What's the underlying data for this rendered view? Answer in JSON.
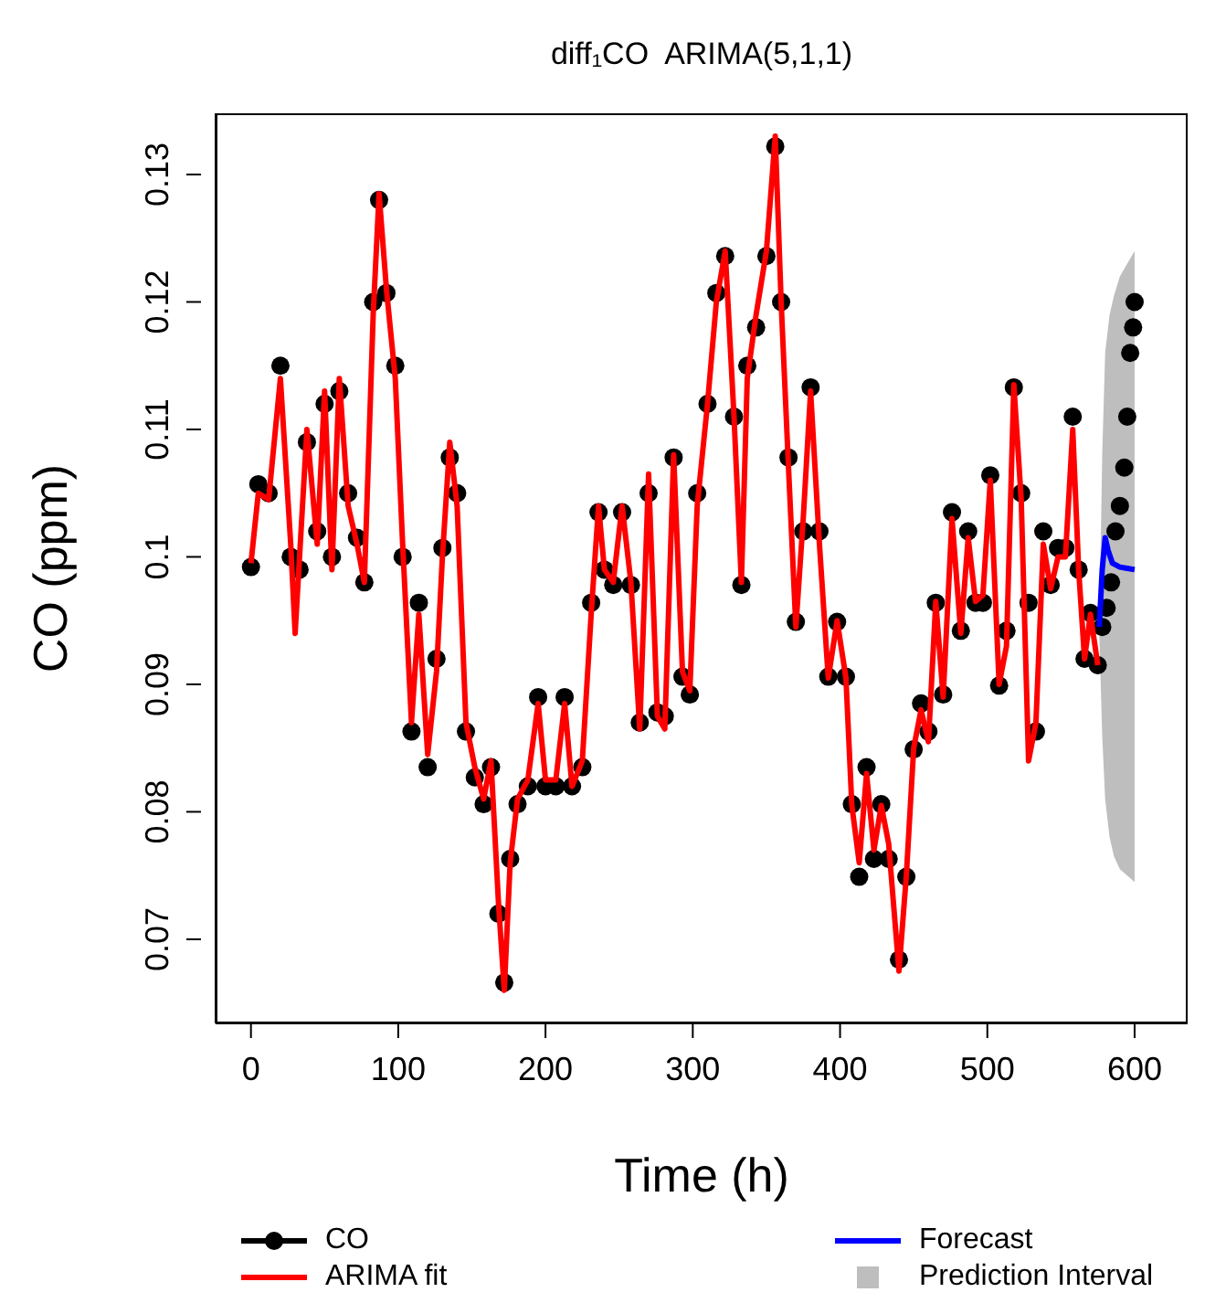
{
  "chart_data": {
    "type": "line",
    "title": "diff₁CO  ARIMA(5,1,1)",
    "xlabel": "Time (h)",
    "ylabel": "CO (ppm)",
    "xlim": [
      -24,
      636
    ],
    "xticks": [
      0,
      100,
      200,
      300,
      400,
      500,
      600
    ],
    "ylim": [
      0.0634,
      0.1348
    ],
    "yticks": [
      0.07,
      0.08,
      0.09,
      0.1,
      0.11,
      0.12,
      0.13
    ],
    "legend": "bottom",
    "series": [
      {
        "name": "Prediction Interval",
        "type": "area",
        "color": "#bebebe",
        "x": [
          576,
          578,
          580,
          583,
          586,
          590,
          595,
          600
        ],
        "values": [
          null,
          null,
          null,
          null,
          null,
          null,
          null,
          null
        ],
        "lower": [
          0.094,
          0.086,
          0.081,
          0.078,
          0.0765,
          0.0755,
          0.075,
          0.0745
        ],
        "upper": [
          0.094,
          0.108,
          0.116,
          0.119,
          0.1205,
          0.122,
          0.123,
          0.124
        ]
      },
      {
        "name": "CO",
        "type": "scatter",
        "color": "#000000",
        "marker": "circle",
        "x": [
          0,
          5,
          12,
          20,
          27,
          33,
          38,
          45,
          50,
          55,
          60,
          66,
          72,
          77,
          83,
          87,
          92,
          98,
          103,
          109,
          114,
          120,
          126,
          130,
          135,
          140,
          146,
          152,
          158,
          163,
          168,
          172,
          176,
          181,
          188,
          195,
          200,
          207,
          213,
          218,
          225,
          231,
          236,
          240,
          246,
          252,
          258,
          264,
          270,
          276,
          281,
          287,
          293,
          298,
          303,
          310,
          316,
          322,
          328,
          333,
          337,
          343,
          350,
          356,
          360,
          365,
          370,
          375,
          380,
          386,
          392,
          398,
          404,
          408,
          413,
          418,
          423,
          428,
          433,
          440,
          445,
          450,
          455,
          460,
          465,
          470,
          476,
          482,
          487,
          492,
          497,
          502,
          508,
          513,
          518,
          523,
          528,
          533,
          538,
          543,
          548,
          553,
          558,
          562,
          566,
          570,
          575,
          578,
          581,
          584,
          587,
          590,
          593,
          595,
          597,
          599,
          600
        ],
        "values": [
          0.0992,
          0.1057,
          0.105,
          0.115,
          0.1,
          0.099,
          0.109,
          0.102,
          0.112,
          0.1,
          0.113,
          0.105,
          0.1015,
          0.098,
          0.12,
          0.128,
          0.1207,
          0.115,
          0.1,
          0.0863,
          0.0964,
          0.0835,
          0.092,
          0.1007,
          0.1078,
          0.105,
          0.0863,
          0.0827,
          0.0806,
          0.0835,
          0.072,
          0.0666,
          0.0763,
          0.0806,
          0.082,
          0.089,
          0.082,
          0.082,
          0.089,
          0.082,
          0.0835,
          0.0964,
          0.1035,
          0.099,
          0.0978,
          0.1035,
          0.0978,
          0.087,
          0.105,
          0.0878,
          0.0875,
          0.1078,
          0.0906,
          0.0892,
          0.105,
          0.112,
          0.1207,
          0.1236,
          0.111,
          0.0978,
          0.115,
          0.118,
          0.1236,
          0.1322,
          0.12,
          0.1078,
          0.0949,
          0.102,
          0.1133,
          0.102,
          0.0906,
          0.0949,
          0.0906,
          0.0806,
          0.0749,
          0.0835,
          0.0763,
          0.0806,
          0.0763,
          0.0684,
          0.0749,
          0.0849,
          0.0885,
          0.0863,
          0.0964,
          0.0892,
          0.1035,
          0.0942,
          0.102,
          0.0964,
          0.0964,
          0.1064,
          0.0899,
          0.0942,
          0.1133,
          0.105,
          0.0964,
          0.0863,
          0.102,
          0.0978,
          0.1007,
          0.1007,
          0.111,
          0.099,
          0.092,
          0.0956,
          0.0915,
          0.0945,
          0.096,
          0.098,
          0.102,
          0.104,
          0.107,
          0.111,
          0.116,
          0.118,
          0.12
        ]
      },
      {
        "name": "ARIMA fit",
        "color": "#ff0000",
        "marker": "none",
        "x": [
          0,
          5,
          12,
          20,
          27,
          30,
          38,
          45,
          50,
          55,
          60,
          66,
          72,
          77,
          83,
          87,
          92,
          98,
          103,
          109,
          114,
          120,
          126,
          130,
          135,
          140,
          146,
          152,
          158,
          163,
          168,
          172,
          176,
          181,
          188,
          195,
          200,
          207,
          213,
          218,
          225,
          231,
          236,
          240,
          246,
          252,
          258,
          264,
          270,
          276,
          281,
          287,
          293,
          298,
          303,
          310,
          316,
          322,
          328,
          333,
          337,
          343,
          350,
          356,
          360,
          365,
          370,
          375,
          380,
          386,
          392,
          398,
          404,
          408,
          413,
          418,
          423,
          428,
          433,
          440,
          445,
          450,
          455,
          460,
          465,
          470,
          476,
          482,
          487,
          492,
          497,
          502,
          508,
          513,
          518,
          523,
          528,
          533,
          538,
          543,
          548,
          553,
          558,
          562,
          566,
          570,
          575
        ],
        "values": [
          0.0995,
          0.105,
          0.1045,
          0.114,
          0.101,
          0.094,
          0.11,
          0.101,
          0.113,
          0.099,
          0.114,
          0.104,
          0.101,
          0.098,
          0.119,
          0.1285,
          0.121,
          0.114,
          0.101,
          0.087,
          0.0955,
          0.0845,
          0.091,
          0.1,
          0.109,
          0.104,
          0.087,
          0.0835,
          0.081,
          0.084,
          0.073,
          0.066,
          0.076,
          0.081,
          0.0825,
          0.0885,
          0.0825,
          0.0825,
          0.0885,
          0.082,
          0.084,
          0.0955,
          0.104,
          0.099,
          0.098,
          0.104,
          0.098,
          0.0865,
          0.1065,
          0.0875,
          0.0865,
          0.108,
          0.091,
          0.0895,
          0.104,
          0.112,
          0.12,
          0.124,
          0.111,
          0.098,
          0.114,
          0.119,
          0.124,
          0.133,
          0.12,
          0.107,
          0.0945,
          0.103,
          0.113,
          0.101,
          0.0905,
          0.095,
          0.0905,
          0.0805,
          0.076,
          0.083,
          0.077,
          0.0805,
          0.0775,
          0.0675,
          0.075,
          0.085,
          0.088,
          0.0855,
          0.0965,
          0.089,
          0.103,
          0.094,
          0.1015,
          0.0965,
          0.097,
          0.106,
          0.09,
          0.093,
          0.1135,
          0.1045,
          0.084,
          0.087,
          0.101,
          0.0975,
          0.1,
          0.1,
          0.11,
          0.099,
          0.092,
          0.0955,
          0.0915
        ]
      },
      {
        "name": "Forecast",
        "color": "#0000ff",
        "marker": "none",
        "x": [
          576,
          578,
          580,
          582,
          585,
          590,
          595,
          600
        ],
        "values": [
          0.0945,
          0.099,
          0.1015,
          0.1005,
          0.0995,
          0.0992,
          0.0991,
          0.099
        ]
      }
    ]
  }
}
